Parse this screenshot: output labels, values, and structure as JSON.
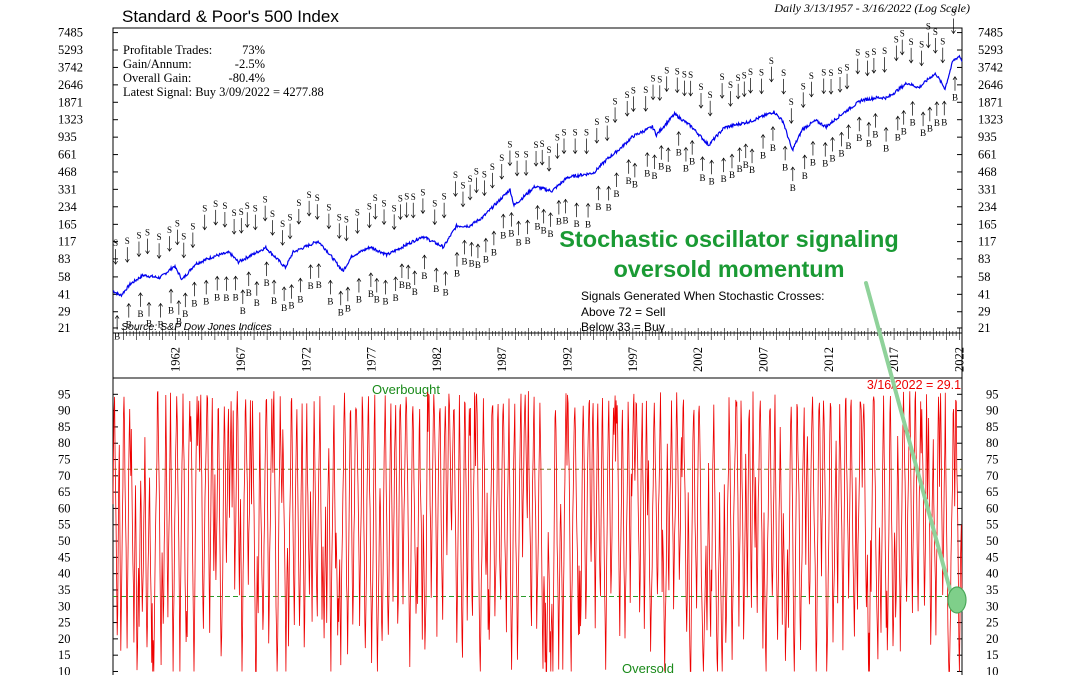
{
  "chart_data": [
    {
      "type": "line",
      "title": "Standard & Poor's 500 Index",
      "subtitle": "Daily 3/13/1957 - 3/16/2022 (Log Scale)",
      "scale": "log",
      "y_ticks": [
        21,
        29,
        41,
        58,
        83,
        117,
        165,
        234,
        331,
        468,
        661,
        935,
        1323,
        1871,
        2646,
        3742,
        5293,
        7485
      ],
      "ylim": [
        19,
        8200
      ],
      "x_ticks": [
        "1962",
        "1967",
        "1972",
        "1977",
        "1982",
        "1987",
        "1992",
        "1997",
        "2002",
        "2007",
        "2012",
        "2017",
        "2022"
      ],
      "xlim": [
        1957.2,
        2022.2
      ],
      "series": [
        {
          "color": "#0000ee",
          "x": [
            1957.2,
            1957.8,
            1958.5,
            1959.5,
            1960.8,
            1961.9,
            1962.5,
            1963.5,
            1965.0,
            1966.1,
            1966.8,
            1968.9,
            1970.4,
            1971.0,
            1972.9,
            1973.5,
            1974.8,
            1975.5,
            1976.9,
            1978.2,
            1980.0,
            1980.9,
            1982.5,
            1983.5,
            1984.5,
            1985.5,
            1987.6,
            1987.9,
            1989.5,
            1990.8,
            1992.0,
            1994.0,
            1995.0,
            1996.0,
            1997.0,
            1998.5,
            1998.8,
            2000.2,
            2001.5,
            2002.8,
            2004.0,
            2006.0,
            2007.8,
            2008.5,
            2009.2,
            2010.0,
            2011.0,
            2011.8,
            2013.0,
            2014.5,
            2015.7,
            2016.5,
            2018.0,
            2018.9,
            2019.8,
            2020.2,
            2020.9,
            2021.5,
            2022.0,
            2022.2
          ],
          "y": [
            44,
            40,
            50,
            60,
            57,
            72,
            55,
            75,
            88,
            94,
            78,
            104,
            70,
            95,
            118,
            100,
            65,
            88,
            105,
            90,
            115,
            130,
            105,
            160,
            160,
            190,
            330,
            240,
            350,
            320,
            420,
            460,
            600,
            740,
            950,
            1150,
            980,
            1480,
            1150,
            800,
            1130,
            1280,
            1550,
            1280,
            720,
            1100,
            1300,
            1150,
            1480,
            1950,
            2050,
            2050,
            2750,
            2500,
            3100,
            3300,
            2450,
            4250,
            4700,
            4300
          ]
        }
      ],
      "stats": {
        "line1_label": "Profitable Trades:",
        "line1_value": "73%",
        "line2_label": "Gain/Annum:",
        "line2_value": "-2.5%",
        "line3_label": "Overall Gain:",
        "line3_value": "-80.4%",
        "line4": "Latest Signal: Buy 3/09/2022 = 4277.88"
      },
      "source": "Source: S&P Dow Jones Indices",
      "signals": {
        "sell_letter": "S",
        "buy_letter": "B",
        "legend_title": "Signals Generated When Stochastic Crosses:",
        "legend_sell": "Above 72 = Sell",
        "legend_buy": "Below 33 = Buy"
      },
      "annotation": {
        "line1": "Stochastic oscillator signaling",
        "line2": "oversold momentum",
        "color": "#1a9a34"
      }
    },
    {
      "type": "line",
      "y_ticks": [
        10,
        15,
        20,
        25,
        30,
        35,
        40,
        45,
        50,
        55,
        60,
        65,
        70,
        75,
        80,
        85,
        90,
        95
      ],
      "ylim": [
        8,
        100
      ],
      "xlim": [
        1957.2,
        2022.2
      ],
      "sell_threshold": 72,
      "buy_threshold": 33,
      "overbought_label": "Overbought",
      "oversold_label": "Oversold",
      "latest_label": "3/16/2022 = 29.1",
      "latest_value": 29.1,
      "latest_x": 2022.2,
      "color": "#ee0000"
    }
  ]
}
